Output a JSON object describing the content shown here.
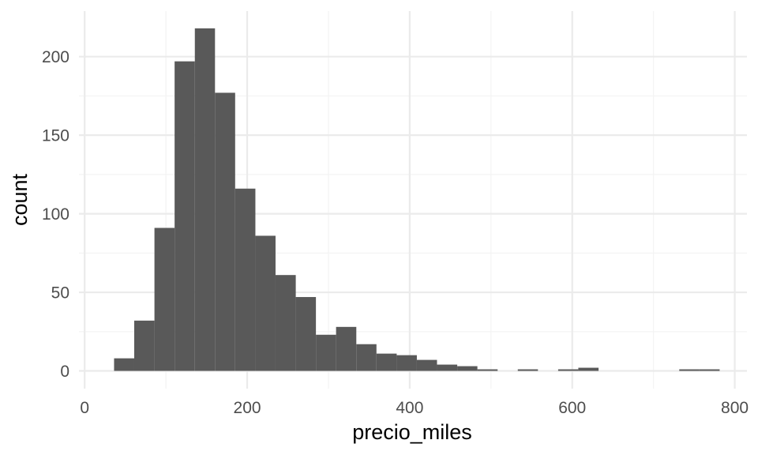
{
  "chart_data": {
    "type": "bar",
    "subtype": "histogram",
    "title": "",
    "xlabel": "precio_miles",
    "ylabel": "count",
    "xlim": [
      0,
      810
    ],
    "ylim": [
      0,
      225
    ],
    "x_ticks": [
      0,
      200,
      400,
      600,
      800
    ],
    "x_tick_labels": [
      "0",
      "200",
      "400",
      "600",
      "800"
    ],
    "y_ticks": [
      0,
      50,
      100,
      150,
      200
    ],
    "y_tick_labels": [
      "0",
      "50",
      "100",
      "150",
      "200"
    ],
    "x_minor_ticks": [
      100,
      300,
      500,
      700
    ],
    "y_minor_ticks": [
      25,
      75,
      125,
      175
    ],
    "grid": true,
    "legend": "none",
    "bar_color": "#595959",
    "grid_major_color": "#ebebeb",
    "grid_minor_color": "#f3f3f3",
    "bin_width": 24.83,
    "bins": [
      {
        "x0": 36.2,
        "x1": 61.0,
        "count": 8
      },
      {
        "x0": 61.0,
        "x1": 85.9,
        "count": 32
      },
      {
        "x0": 85.9,
        "x1": 110.7,
        "count": 91
      },
      {
        "x0": 110.7,
        "x1": 135.6,
        "count": 197
      },
      {
        "x0": 135.6,
        "x1": 160.4,
        "count": 218
      },
      {
        "x0": 160.4,
        "x1": 185.2,
        "count": 177
      },
      {
        "x0": 185.2,
        "x1": 210.1,
        "count": 116
      },
      {
        "x0": 210.1,
        "x1": 234.9,
        "count": 86
      },
      {
        "x0": 234.9,
        "x1": 259.8,
        "count": 61
      },
      {
        "x0": 259.8,
        "x1": 284.6,
        "count": 47
      },
      {
        "x0": 284.6,
        "x1": 309.4,
        "count": 23
      },
      {
        "x0": 309.4,
        "x1": 334.3,
        "count": 28
      },
      {
        "x0": 334.3,
        "x1": 359.1,
        "count": 17
      },
      {
        "x0": 359.1,
        "x1": 384.0,
        "count": 11
      },
      {
        "x0": 384.0,
        "x1": 408.8,
        "count": 10
      },
      {
        "x0": 408.8,
        "x1": 433.6,
        "count": 7
      },
      {
        "x0": 433.6,
        "x1": 458.5,
        "count": 4
      },
      {
        "x0": 458.5,
        "x1": 483.3,
        "count": 3
      },
      {
        "x0": 483.3,
        "x1": 508.2,
        "count": 1
      },
      {
        "x0": 508.2,
        "x1": 533.0,
        "count": 0
      },
      {
        "x0": 533.0,
        "x1": 557.8,
        "count": 1
      },
      {
        "x0": 557.8,
        "x1": 582.7,
        "count": 0
      },
      {
        "x0": 582.7,
        "x1": 607.5,
        "count": 1
      },
      {
        "x0": 607.5,
        "x1": 632.4,
        "count": 2
      },
      {
        "x0": 632.4,
        "x1": 657.2,
        "count": 0
      },
      {
        "x0": 657.2,
        "x1": 682.0,
        "count": 0
      },
      {
        "x0": 682.0,
        "x1": 706.9,
        "count": 0
      },
      {
        "x0": 706.9,
        "x1": 731.7,
        "count": 0
      },
      {
        "x0": 731.7,
        "x1": 756.6,
        "count": 1
      },
      {
        "x0": 756.6,
        "x1": 781.4,
        "count": 1
      }
    ]
  }
}
